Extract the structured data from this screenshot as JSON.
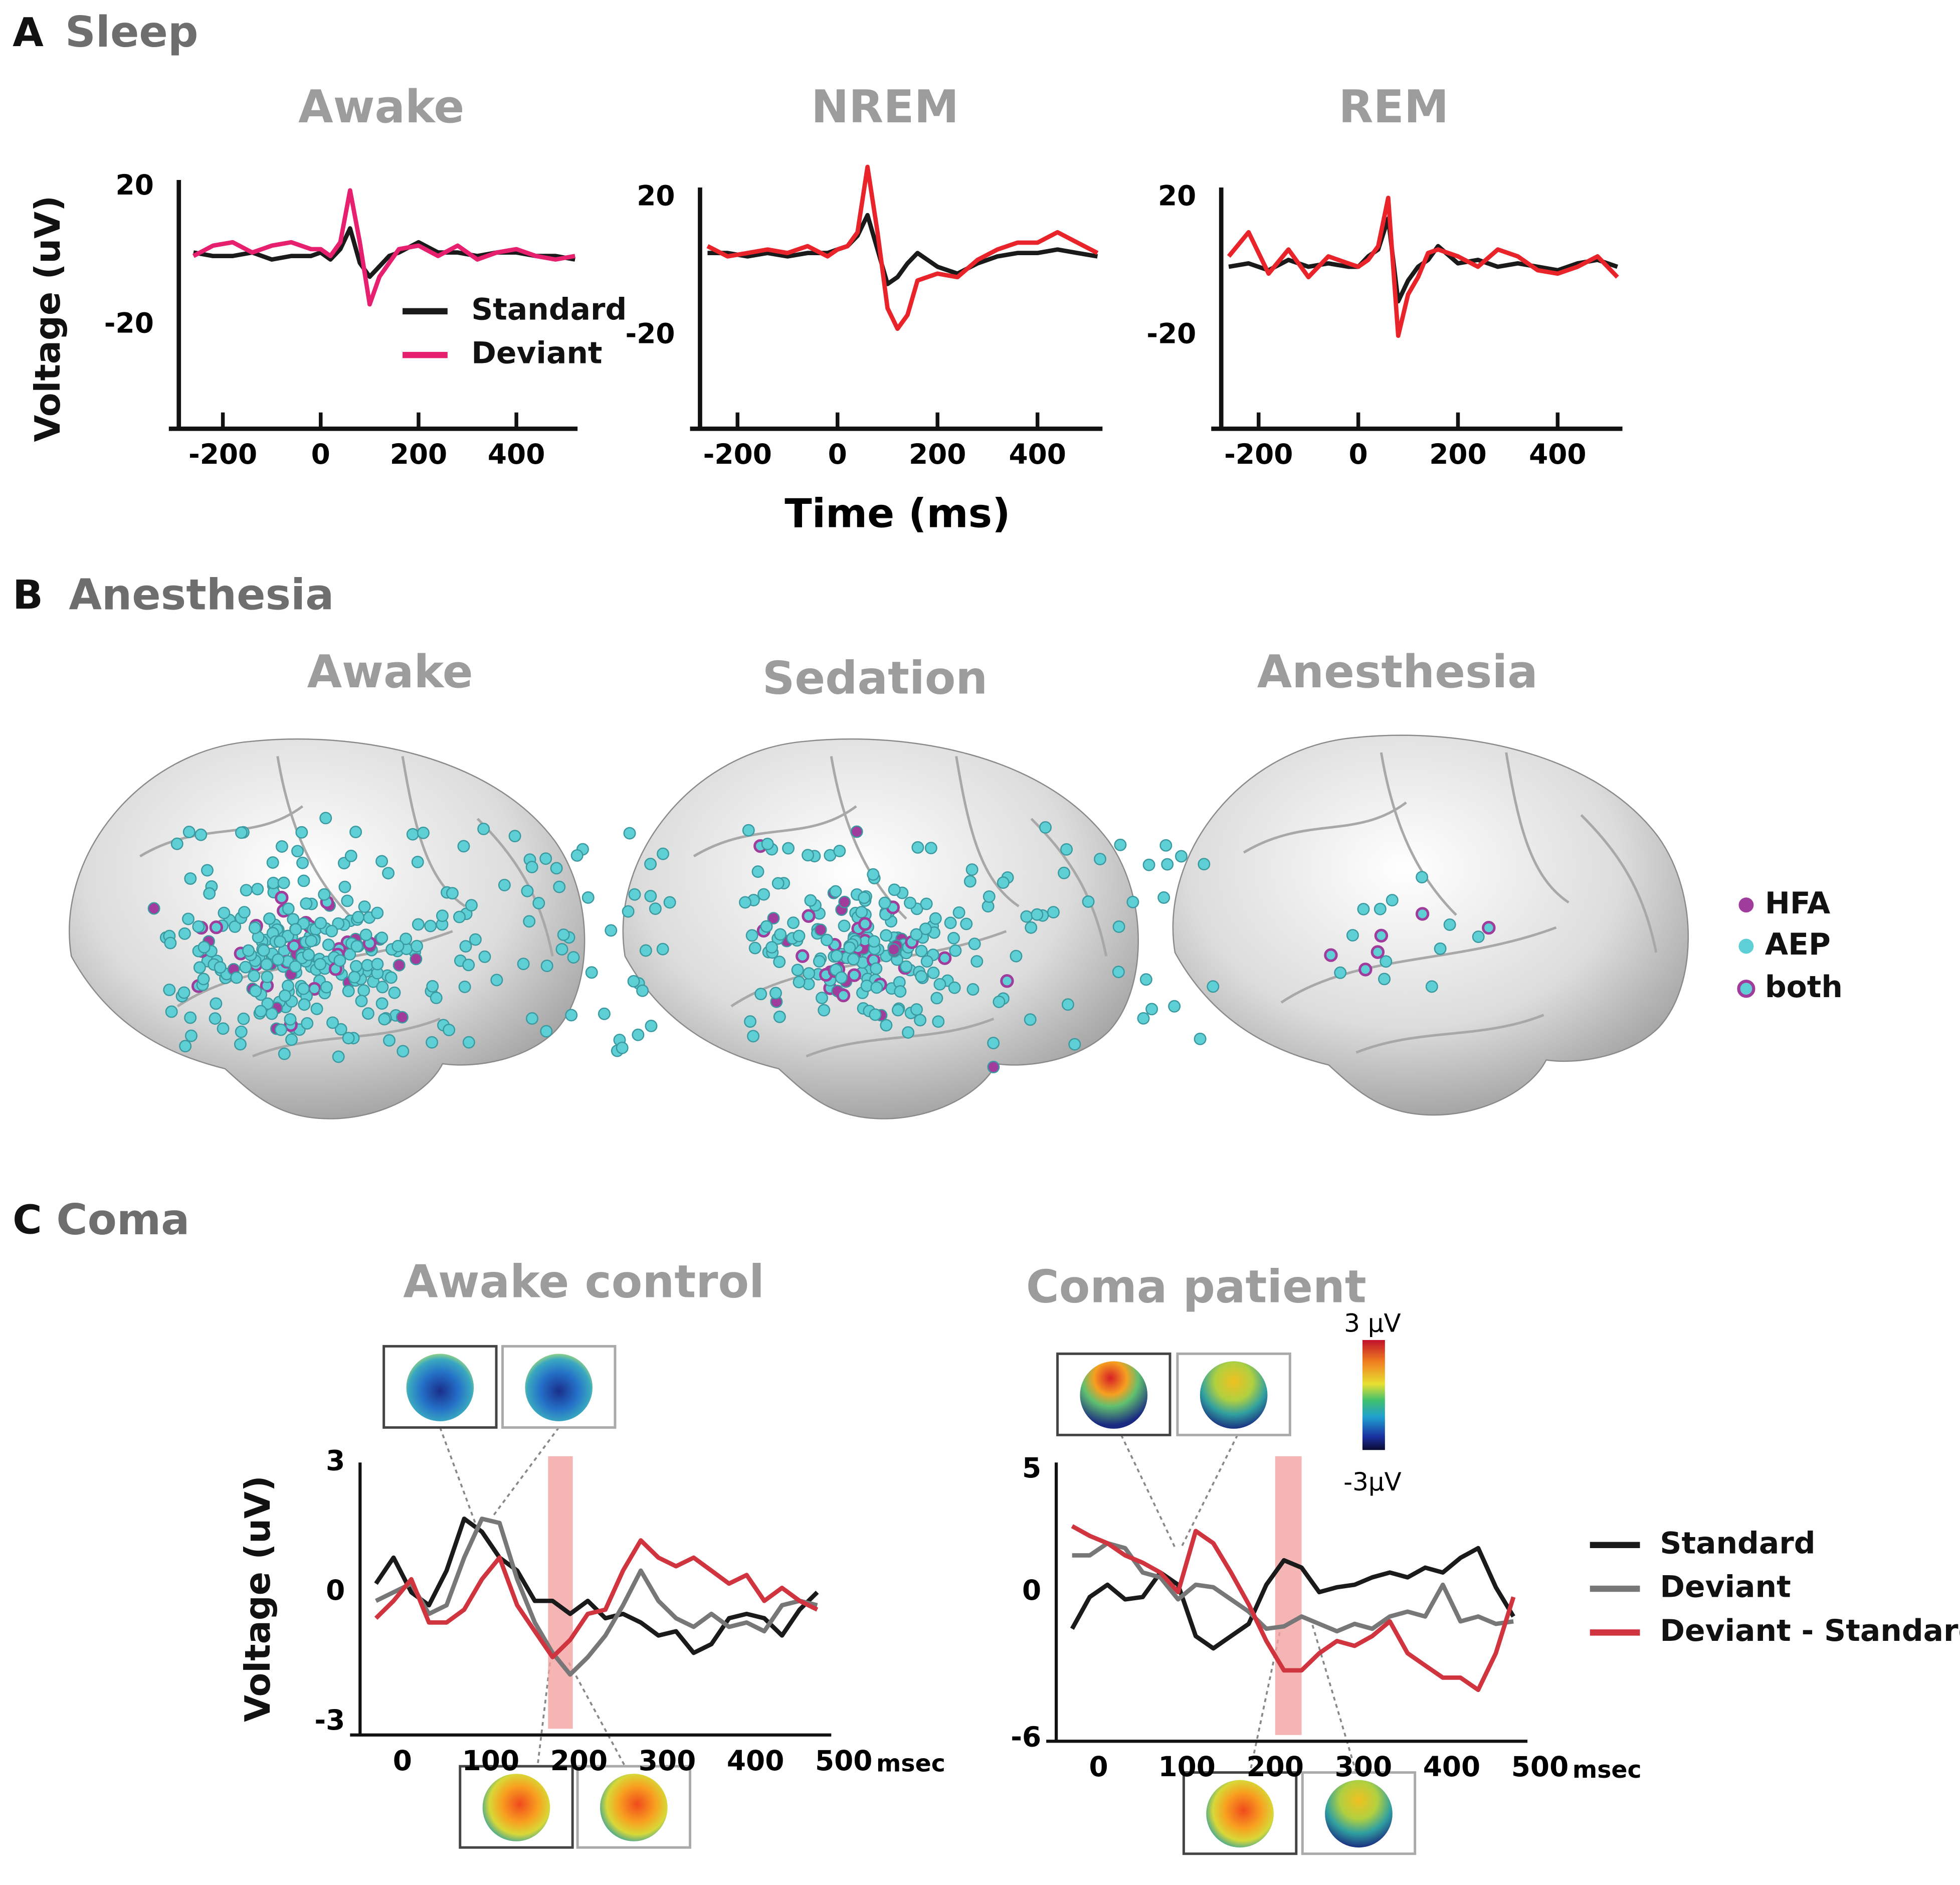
{
  "panel_a": {
    "label": "A",
    "title": "Sleep",
    "y_label": "Voltage (uV)",
    "x_label": "Time (ms)"
  },
  "panel_b": {
    "label": "B",
    "title": "Anesthesia",
    "subpanels": [
      "Awake",
      "Sedation",
      "Anesthesia"
    ],
    "legend": [
      {
        "name": "HFA",
        "color": "#a03c9c"
      },
      {
        "name": "AEP",
        "color": "#5fcfd6"
      },
      {
        "name": "both"
      }
    ]
  },
  "panel_c": {
    "label": "C",
    "title": "Coma",
    "colorbar": {
      "max_label": "3 µV",
      "min_label": "-3µV"
    }
  },
  "chart_data": [
    {
      "type": "line",
      "title": "Awake",
      "legend": true,
      "x": [
        -260,
        -220,
        -180,
        -140,
        -100,
        -60,
        -20,
        0,
        20,
        40,
        60,
        80,
        100,
        120,
        140,
        160,
        200,
        240,
        280,
        320,
        360,
        400,
        440,
        480,
        520
      ],
      "xlim": [
        -290,
        525
      ],
      "xticks": [
        -200,
        0,
        200,
        400
      ],
      "ylim": [
        -50,
        22
      ],
      "yticks": [
        -20,
        20
      ],
      "series": [
        {
          "name": "Standard",
          "color": "#1a1a1a",
          "values": [
            1,
            0,
            0,
            1,
            -1,
            0,
            0,
            1,
            -1,
            2,
            8,
            -2,
            -6,
            -3,
            0,
            1,
            4,
            1,
            1,
            0,
            1,
            1,
            0,
            0,
            -1
          ]
        },
        {
          "name": "Deviant",
          "color": "#e6206e",
          "values": [
            0,
            3,
            4,
            1,
            3,
            4,
            2,
            2,
            0,
            4,
            19,
            4,
            -14,
            -6,
            -2,
            2,
            3,
            0,
            3,
            -1,
            1,
            2,
            0,
            -1,
            0
          ]
        }
      ]
    },
    {
      "type": "line",
      "title": "NREM",
      "legend": false,
      "x": [
        -260,
        -220,
        -180,
        -140,
        -100,
        -60,
        -20,
        0,
        20,
        40,
        60,
        80,
        100,
        120,
        140,
        160,
        200,
        240,
        280,
        320,
        360,
        400,
        440,
        480,
        520
      ],
      "xlim": [
        -275,
        530
      ],
      "xticks": [
        -200,
        0,
        200,
        400
      ],
      "ylim": [
        -47,
        23
      ],
      "yticks": [
        -20,
        20
      ],
      "series": [
        {
          "name": "Standard",
          "color": "#1a1a1a",
          "values": [
            4,
            4,
            3,
            4,
            3,
            4,
            4,
            5,
            6,
            9,
            15,
            5,
            -5,
            -3,
            1,
            4,
            0,
            -2,
            1,
            3,
            4,
            4,
            5,
            4,
            3
          ]
        },
        {
          "name": "Deviant",
          "color": "#e8232a",
          "values": [
            6,
            3,
            4,
            5,
            4,
            6,
            3,
            5,
            6,
            10,
            29,
            10,
            -12,
            -18,
            -14,
            -4,
            -2,
            -3,
            2,
            5,
            7,
            7,
            10,
            7,
            4
          ]
        }
      ]
    },
    {
      "type": "line",
      "title": "REM",
      "legend": false,
      "x": [
        -260,
        -220,
        -180,
        -140,
        -100,
        -60,
        -20,
        0,
        20,
        40,
        60,
        80,
        100,
        120,
        140,
        160,
        200,
        240,
        280,
        320,
        360,
        400,
        440,
        480,
        520
      ],
      "xlim": [
        -275,
        530
      ],
      "xticks": [
        -200,
        0,
        200,
        400
      ],
      "ylim": [
        -47,
        23
      ],
      "yticks": [
        -20,
        20
      ],
      "series": [
        {
          "name": "Standard",
          "color": "#1a1a1a",
          "values": [
            0,
            1,
            -1,
            2,
            0,
            1,
            0,
            0,
            3,
            5,
            14,
            -10,
            -4,
            0,
            2,
            6,
            1,
            2,
            0,
            1,
            0,
            -1,
            1,
            2,
            0
          ]
        },
        {
          "name": "Deviant",
          "color": "#e8232a",
          "values": [
            3,
            10,
            -2,
            5,
            -3,
            3,
            1,
            0,
            2,
            6,
            20,
            -20,
            -8,
            -3,
            4,
            5,
            3,
            0,
            5,
            3,
            -1,
            -2,
            0,
            3,
            -3
          ]
        }
      ]
    },
    {
      "type": "line",
      "title": "Awake control",
      "legend": false,
      "y_label": "Voltage (uV)",
      "x_unit": "msec",
      "highlight": [
        165,
        193
      ],
      "x": [
        -30,
        -10,
        10,
        30,
        50,
        70,
        90,
        110,
        130,
        150,
        170,
        190,
        210,
        230,
        250,
        270,
        290,
        310,
        330,
        350,
        370,
        390,
        410,
        430,
        450,
        470
      ],
      "xlim": [
        -48,
        500
      ],
      "xticks": [
        0,
        100,
        200,
        300,
        400,
        500
      ],
      "ylim": [
        -3.3,
        3
      ],
      "yticks": [
        -3,
        0,
        3
      ],
      "series": [
        {
          "name": "Standard",
          "color": "#1a1a1a",
          "values": [
            0.2,
            0.8,
            0.0,
            -0.3,
            0.5,
            1.7,
            1.4,
            0.8,
            0.5,
            -0.2,
            -0.2,
            -0.5,
            -0.2,
            -0.6,
            -0.5,
            -0.7,
            -1.0,
            -0.9,
            -1.4,
            -1.2,
            -0.6,
            -0.5,
            -0.6,
            -1.0,
            -0.4,
            0.0
          ]
        },
        {
          "name": "Deviant",
          "color": "#777777",
          "values": [
            -0.2,
            0.0,
            0.2,
            -0.5,
            -0.3,
            0.8,
            1.7,
            1.6,
            0.3,
            -0.7,
            -1.4,
            -1.9,
            -1.5,
            -1.0,
            -0.3,
            0.5,
            -0.2,
            -0.6,
            -0.8,
            -0.5,
            -0.8,
            -0.7,
            -0.9,
            -0.3,
            -0.2,
            -0.3
          ]
        },
        {
          "name": "Deviant - Standard",
          "color": "#d0343f",
          "values": [
            -0.6,
            -0.2,
            0.3,
            -0.7,
            -0.7,
            -0.4,
            0.3,
            0.8,
            -0.3,
            -0.9,
            -1.5,
            -1.1,
            -0.5,
            -0.4,
            0.5,
            1.2,
            0.8,
            0.6,
            0.8,
            0.5,
            0.2,
            0.4,
            -0.2,
            0.1,
            -0.2,
            -0.4
          ]
        }
      ]
    },
    {
      "type": "line",
      "title": "Coma patient",
      "legend": true,
      "x_unit": "msec",
      "highlight": [
        200,
        230
      ],
      "x": [
        -30,
        -10,
        10,
        30,
        50,
        70,
        90,
        110,
        130,
        150,
        170,
        190,
        210,
        230,
        250,
        270,
        290,
        310,
        330,
        350,
        370,
        390,
        410,
        430,
        450,
        470
      ],
      "xlim": [
        -48,
        500
      ],
      "xticks": [
        0,
        100,
        200,
        300,
        400,
        500
      ],
      "ylim": [
        -6.1,
        5.3
      ],
      "yticks": [
        -6,
        0,
        5
      ],
      "series": [
        {
          "name": "Standard",
          "color": "#1a1a1a",
          "values": [
            -1.5,
            -0.2,
            0.3,
            -0.3,
            -0.2,
            0.8,
            0.3,
            -1.8,
            -2.3,
            -1.8,
            -1.3,
            0.3,
            1.3,
            1.0,
            0.0,
            0.2,
            0.3,
            0.6,
            0.8,
            0.6,
            1.0,
            0.8,
            1.4,
            1.8,
            0.2,
            -1.0
          ]
        },
        {
          "name": "Deviant",
          "color": "#777777",
          "values": [
            1.5,
            1.5,
            2.0,
            1.8,
            0.8,
            0.6,
            -0.3,
            0.3,
            0.2,
            -0.3,
            -0.8,
            -1.5,
            -1.4,
            -1.0,
            -1.3,
            -1.6,
            -1.3,
            -1.5,
            -1.0,
            -0.8,
            -1.0,
            0.3,
            -1.2,
            -1.0,
            -1.3,
            -1.2
          ]
        },
        {
          "name": "Deviant - Standard",
          "color": "#d0343f",
          "values": [
            2.7,
            2.3,
            2.0,
            1.5,
            1.2,
            0.8,
            0.0,
            2.5,
            2.0,
            0.8,
            -0.5,
            -2.0,
            -3.2,
            -3.2,
            -2.5,
            -2.0,
            -2.2,
            -1.8,
            -1.2,
            -2.5,
            -3.0,
            -3.5,
            -3.5,
            -4.0,
            -2.5,
            -0.2
          ]
        }
      ]
    }
  ]
}
